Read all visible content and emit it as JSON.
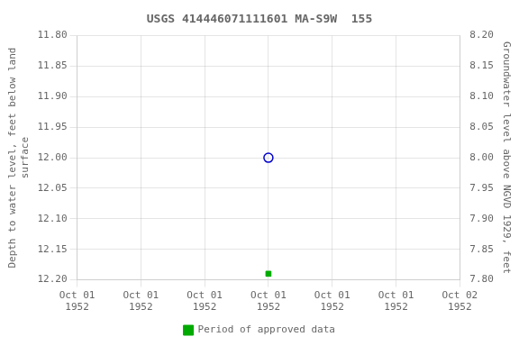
{
  "chart_data": {
    "type": "scatter",
    "title": "USGS 414446071111601 MA-S9W  155",
    "ylabel": "Depth to water level, feet below land\nsurface",
    "y2label": "Groundwater level above NGVD 1929, feet",
    "categories": [
      "Oct 01\n1952",
      "Oct 01\n1952",
      "Oct 01\n1952",
      "Oct 01\n1952",
      "Oct 01\n1952",
      "Oct 01\n1952",
      "Oct 02\n1952"
    ],
    "series": [
      {
        "color": "#0000cc",
        "marker": "circle",
        "values": [
          null,
          null,
          null,
          12.0,
          null,
          null,
          null
        ]
      },
      {
        "name": "Period of approved data",
        "color": "#00aa00",
        "marker": "square",
        "values": [
          null,
          null,
          null,
          12.19,
          null,
          null,
          null
        ]
      }
    ],
    "ylim": [
      12.2,
      11.8
    ],
    "yticks": [
      {
        "value": 11.8,
        "label": "11.80"
      },
      11.85,
      {
        "value": 11.9,
        "label": "11.90"
      },
      11.95,
      {
        "value": 12.0,
        "label": "12.00"
      },
      12.05,
      {
        "value": 12.1,
        "label": "12.10"
      },
      12.15,
      {
        "value": 12.2,
        "label": "12.20"
      }
    ],
    "y2lim": [
      7.8,
      8.2
    ],
    "y2ticks": [
      {
        "value": 8.2,
        "label": "8.20"
      },
      8.15,
      {
        "value": 8.1,
        "label": "8.10"
      },
      8.05,
      {
        "value": 8.0,
        "label": "8.00"
      },
      7.95,
      {
        "value": 7.9,
        "label": "7.90"
      },
      7.85,
      {
        "value": 7.8,
        "label": "7.80"
      }
    ],
    "grid": true,
    "legend": "bottom"
  }
}
